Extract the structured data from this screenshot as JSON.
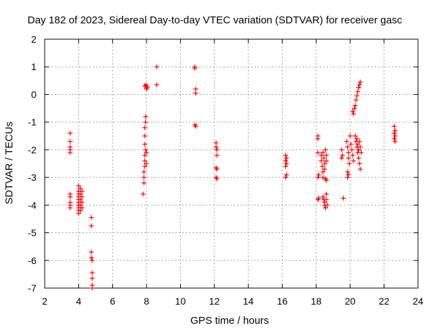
{
  "chart_data": {
    "type": "scatter",
    "title": "Day 182 of 2023, Sidereal Day-to-day VTEC variation (SDTVAR) for receiver gasc",
    "xlabel": "GPS time / hours",
    "ylabel": "SDTVAR / TECUs",
    "xlim": [
      2,
      24
    ],
    "ylim": [
      -7,
      2
    ],
    "x_ticks": [
      2,
      4,
      6,
      8,
      10,
      12,
      14,
      16,
      18,
      20,
      22,
      24
    ],
    "y_ticks": [
      -7,
      -6,
      -5,
      -4,
      -3,
      -2,
      -1,
      0,
      1,
      2
    ],
    "x_tick_labels": [
      "2",
      "4",
      "6",
      "8",
      "10",
      "12",
      "14",
      "16",
      "18",
      "20",
      "22",
      "24"
    ],
    "y_tick_labels": [
      "-7",
      "-6",
      "-5",
      "-4",
      "-3",
      "-2",
      "-1",
      "0",
      "1",
      "2"
    ],
    "grid": true,
    "marker": "+",
    "marker_color": "#ff0000",
    "series": [
      {
        "points": [
          [
            3.5,
            -1.4
          ],
          [
            3.5,
            -1.7
          ],
          [
            3.5,
            -1.9
          ],
          [
            3.5,
            -2.0
          ],
          [
            3.5,
            -2.1
          ],
          [
            3.5,
            -3.6
          ],
          [
            3.5,
            -3.7
          ],
          [
            3.5,
            -3.9
          ],
          [
            3.5,
            -4.0
          ],
          [
            3.5,
            -4.1
          ],
          [
            4.0,
            -3.3
          ],
          [
            4.0,
            -3.5
          ],
          [
            4.0,
            -3.6
          ],
          [
            4.0,
            -3.7
          ],
          [
            4.0,
            -3.8
          ],
          [
            4.0,
            -3.9
          ],
          [
            4.0,
            -4.0
          ],
          [
            4.0,
            -4.1
          ],
          [
            4.0,
            -4.2
          ],
          [
            4.0,
            -4.3
          ],
          [
            4.1,
            -3.4
          ],
          [
            4.1,
            -3.6
          ],
          [
            4.1,
            -3.8
          ],
          [
            4.1,
            -4.0
          ],
          [
            4.1,
            -4.2
          ],
          [
            4.2,
            -3.5
          ],
          [
            4.2,
            -3.7
          ],
          [
            4.2,
            -3.9
          ],
          [
            4.2,
            -4.1
          ],
          [
            4.75,
            -4.45
          ],
          [
            4.75,
            -4.75
          ],
          [
            4.75,
            -5.7
          ],
          [
            4.75,
            -5.9
          ],
          [
            4.8,
            -6.0
          ],
          [
            4.8,
            -6.45
          ],
          [
            4.8,
            -6.65
          ],
          [
            4.8,
            -6.9
          ],
          [
            4.8,
            -7.0
          ],
          [
            7.8,
            -3.6
          ],
          [
            7.85,
            -3.2
          ],
          [
            7.85,
            -3.0
          ],
          [
            7.85,
            -2.8
          ],
          [
            7.9,
            -2.6
          ],
          [
            7.9,
            -2.4
          ],
          [
            7.9,
            -2.2
          ],
          [
            7.9,
            -1.8
          ],
          [
            7.9,
            -1.5
          ],
          [
            7.9,
            -1.2
          ],
          [
            7.95,
            -1.0
          ],
          [
            7.95,
            -0.8
          ],
          [
            7.95,
            -2.0
          ],
          [
            8.0,
            -2.5
          ],
          [
            8.0,
            -2.1
          ],
          [
            7.9,
            0.3
          ],
          [
            7.95,
            0.35
          ],
          [
            8.0,
            0.2
          ],
          [
            8.0,
            0.3
          ],
          [
            8.05,
            0.25
          ],
          [
            8.6,
            1.0
          ],
          [
            8.6,
            0.35
          ],
          [
            10.85,
            1.0
          ],
          [
            10.85,
            0.95
          ],
          [
            10.9,
            0.2
          ],
          [
            10.9,
            0.05
          ],
          [
            10.85,
            -1.1
          ],
          [
            10.9,
            -1.15
          ],
          [
            12.1,
            -1.75
          ],
          [
            12.1,
            -1.9
          ],
          [
            12.15,
            -2.0
          ],
          [
            12.15,
            -2.2
          ],
          [
            12.1,
            -2.65
          ],
          [
            12.15,
            -2.7
          ],
          [
            12.1,
            -3.0
          ],
          [
            12.15,
            -3.05
          ],
          [
            16.2,
            -2.2
          ],
          [
            16.25,
            -2.3
          ],
          [
            16.2,
            -2.4
          ],
          [
            16.25,
            -2.5
          ],
          [
            16.2,
            -2.6
          ],
          [
            16.25,
            -2.9
          ],
          [
            16.2,
            -3.0
          ],
          [
            18.1,
            -1.5
          ],
          [
            18.1,
            -1.6
          ],
          [
            18.1,
            -2.1
          ],
          [
            18.15,
            -2.9
          ],
          [
            18.1,
            -3.0
          ],
          [
            18.15,
            -3.75
          ],
          [
            18.1,
            -3.8
          ],
          [
            18.3,
            -2.2
          ],
          [
            18.3,
            -2.4
          ],
          [
            18.35,
            -2.6
          ],
          [
            18.4,
            -2.8
          ],
          [
            18.4,
            -3.0
          ],
          [
            18.4,
            -2.1
          ],
          [
            18.45,
            -2.3
          ],
          [
            18.5,
            -2.5
          ],
          [
            18.5,
            -2.7
          ],
          [
            18.55,
            -2.0
          ],
          [
            18.6,
            -2.2
          ],
          [
            18.6,
            -2.4
          ],
          [
            18.4,
            -3.7
          ],
          [
            18.45,
            -3.8
          ],
          [
            18.5,
            -3.9
          ],
          [
            18.5,
            -4.0
          ],
          [
            18.55,
            -4.1
          ],
          [
            18.6,
            -3.6
          ],
          [
            18.6,
            -3.8
          ],
          [
            18.65,
            -4.0
          ],
          [
            18.55,
            -3.05
          ],
          [
            18.6,
            -3.1
          ],
          [
            19.5,
            -2.0
          ],
          [
            19.55,
            -2.2
          ],
          [
            19.5,
            -2.3
          ],
          [
            19.6,
            -3.75
          ],
          [
            19.8,
            -1.7
          ],
          [
            19.85,
            -1.9
          ],
          [
            19.9,
            -2.1
          ],
          [
            19.9,
            -2.3
          ],
          [
            19.95,
            -2.5
          ],
          [
            19.85,
            -2.8
          ],
          [
            19.9,
            -2.9
          ],
          [
            19.85,
            -3.0
          ],
          [
            20.0,
            -1.5
          ],
          [
            20.05,
            -1.8
          ],
          [
            20.1,
            -2.0
          ],
          [
            20.15,
            -2.2
          ],
          [
            20.2,
            -2.4
          ],
          [
            20.15,
            -0.6
          ],
          [
            20.2,
            -0.7
          ],
          [
            20.25,
            -0.5
          ],
          [
            20.3,
            -0.4
          ],
          [
            20.35,
            -0.2
          ],
          [
            20.4,
            -0.05
          ],
          [
            20.45,
            0.1
          ],
          [
            20.5,
            0.25
          ],
          [
            20.55,
            0.35
          ],
          [
            20.6,
            0.45
          ],
          [
            20.3,
            -1.5
          ],
          [
            20.35,
            -1.7
          ],
          [
            20.4,
            -1.9
          ],
          [
            20.45,
            -2.1
          ],
          [
            20.5,
            -2.3
          ],
          [
            20.55,
            -2.5
          ],
          [
            20.6,
            -2.7
          ],
          [
            20.4,
            -1.6
          ],
          [
            20.45,
            -1.8
          ],
          [
            20.5,
            -2.0
          ],
          [
            20.55,
            -1.7
          ],
          [
            20.6,
            -1.9
          ],
          [
            20.65,
            -2.1
          ],
          [
            22.6,
            -1.15
          ],
          [
            22.65,
            -1.3
          ],
          [
            22.6,
            -1.4
          ],
          [
            22.65,
            -1.5
          ],
          [
            22.6,
            -1.6
          ],
          [
            22.65,
            -1.7
          ]
        ]
      }
    ]
  }
}
